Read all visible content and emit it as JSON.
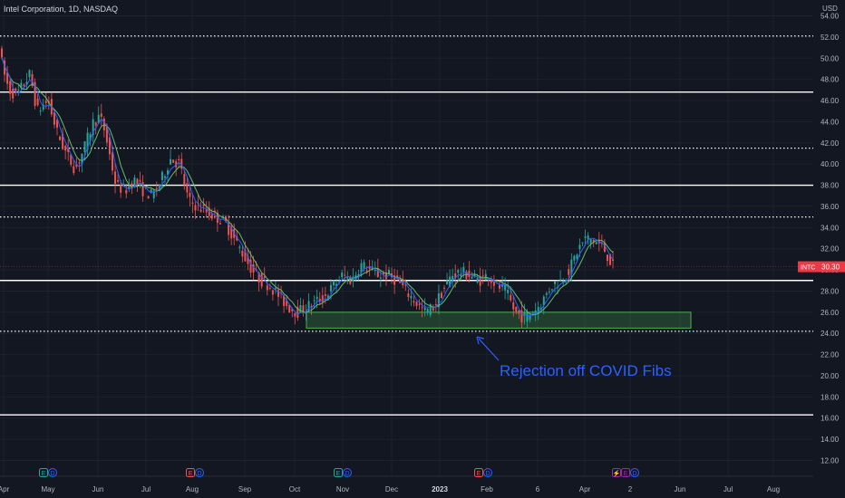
{
  "header": {
    "title": "Intel Corporation, 1D, NASDAQ",
    "currency": "USD"
  },
  "price_tag": {
    "symbol": "INTC",
    "value": "30.30",
    "color": "#f23645"
  },
  "annotation": {
    "text": "Rejection off COVID Fibs",
    "color": "#2962ff"
  },
  "chart_data": {
    "type": "candlestick",
    "title": "Intel Corporation, 1D, NASDAQ",
    "ylim": [
      10.5,
      55.5
    ],
    "y_ticks": [
      "12.00",
      "14.00",
      "16.00",
      "18.00",
      "20.00",
      "22.00",
      "24.00",
      "26.00",
      "28.00",
      "30.00",
      "32.00",
      "34.00",
      "36.00",
      "38.00",
      "40.00",
      "42.00",
      "44.00",
      "46.00",
      "48.00",
      "50.00",
      "52.00",
      "54.00"
    ],
    "x_ticks": [
      "Apr",
      "May",
      "Jun",
      "Jul",
      "Aug",
      "Sep",
      "Oct",
      "Nov",
      "Dec",
      "2023",
      "Feb",
      "6",
      "Apr",
      "2",
      "Jun",
      "Jul",
      "Aug"
    ],
    "colors": {
      "up": "#26a69a",
      "down": "#ef5350",
      "ma_fast": "#2962ff",
      "ma_slow": "#66bb6a",
      "zone": "#4caf50"
    },
    "horizontal_levels": [
      {
        "price": 52.1,
        "style": "dotted"
      },
      {
        "price": 46.8,
        "style": "solid"
      },
      {
        "price": 41.5,
        "style": "dotted"
      },
      {
        "price": 38.0,
        "style": "solid"
      },
      {
        "price": 35.0,
        "style": "dotted"
      },
      {
        "price": 29.0,
        "style": "solid"
      },
      {
        "price": 24.2,
        "style": "dotted"
      },
      {
        "price": 16.3,
        "style": "solid"
      }
    ],
    "support_zone": {
      "low": 24.5,
      "high": 26.0
    },
    "price_path": [
      [
        0,
        52.0
      ],
      [
        5,
        49.0
      ],
      [
        12,
        47.0
      ],
      [
        20,
        46.5
      ],
      [
        28,
        47.5
      ],
      [
        35,
        48.5
      ],
      [
        43,
        45.0
      ],
      [
        55,
        46.0
      ],
      [
        65,
        43.0
      ],
      [
        75,
        41.0
      ],
      [
        85,
        39.5
      ],
      [
        95,
        41.5
      ],
      [
        105,
        44.0
      ],
      [
        112,
        44.5
      ],
      [
        118,
        43.0
      ],
      [
        125,
        40.0
      ],
      [
        130,
        38.0
      ],
      [
        140,
        37.5
      ],
      [
        150,
        38.5
      ],
      [
        160,
        37.5
      ],
      [
        170,
        37.0
      ],
      [
        180,
        38.5
      ],
      [
        190,
        40.5
      ],
      [
        200,
        40.0
      ],
      [
        210,
        36.5
      ],
      [
        220,
        36.0
      ],
      [
        230,
        35.5
      ],
      [
        240,
        35.0
      ],
      [
        250,
        34.5
      ],
      [
        260,
        33.0
      ],
      [
        270,
        31.5
      ],
      [
        280,
        30.0
      ],
      [
        290,
        29.0
      ],
      [
        300,
        28.5
      ],
      [
        310,
        27.5
      ],
      [
        320,
        26.5
      ],
      [
        330,
        26.0
      ],
      [
        340,
        26.5
      ],
      [
        350,
        27.0
      ],
      [
        360,
        27.5
      ],
      [
        370,
        28.5
      ],
      [
        380,
        29.5
      ],
      [
        390,
        29.0
      ],
      [
        400,
        30.5
      ],
      [
        410,
        30.0
      ],
      [
        420,
        29.5
      ],
      [
        430,
        29.5
      ],
      [
        440,
        29.0
      ],
      [
        450,
        28.0
      ],
      [
        460,
        27.0
      ],
      [
        470,
        26.0
      ],
      [
        480,
        26.5
      ],
      [
        490,
        28.0
      ],
      [
        500,
        29.5
      ],
      [
        510,
        29.8
      ],
      [
        520,
        29.5
      ],
      [
        530,
        29.0
      ],
      [
        540,
        29.5
      ],
      [
        550,
        28.5
      ],
      [
        560,
        28.0
      ],
      [
        570,
        26.0
      ],
      [
        580,
        25.5
      ],
      [
        590,
        26.0
      ],
      [
        600,
        27.0
      ],
      [
        610,
        28.5
      ],
      [
        620,
        29.0
      ],
      [
        630,
        30.0
      ],
      [
        640,
        32.0
      ],
      [
        648,
        33.0
      ],
      [
        655,
        32.8
      ],
      [
        662,
        32.5
      ],
      [
        668,
        32.0
      ],
      [
        674,
        31.0
      ],
      [
        678,
        30.3
      ]
    ],
    "events": [
      {
        "x_index": 48,
        "labels": [
          "E",
          "D"
        ],
        "colors": [
          "#26a69a",
          "#2962ff"
        ]
      },
      {
        "x_index": 210,
        "labels": [
          "E",
          "D"
        ],
        "colors": [
          "#ef5350",
          "#2962ff"
        ]
      },
      {
        "x_index": 373,
        "labels": [
          "E",
          "D"
        ],
        "colors": [
          "#26a69a",
          "#2962ff"
        ]
      },
      {
        "x_index": 528,
        "labels": [
          "E",
          "D"
        ],
        "colors": [
          "#ef5350",
          "#2962ff"
        ]
      },
      {
        "x_index": 680,
        "labels": [
          "⚡",
          "E",
          "D"
        ],
        "colors": [
          "#9c27b0",
          "#9c27b0",
          "#2962ff"
        ]
      }
    ]
  }
}
